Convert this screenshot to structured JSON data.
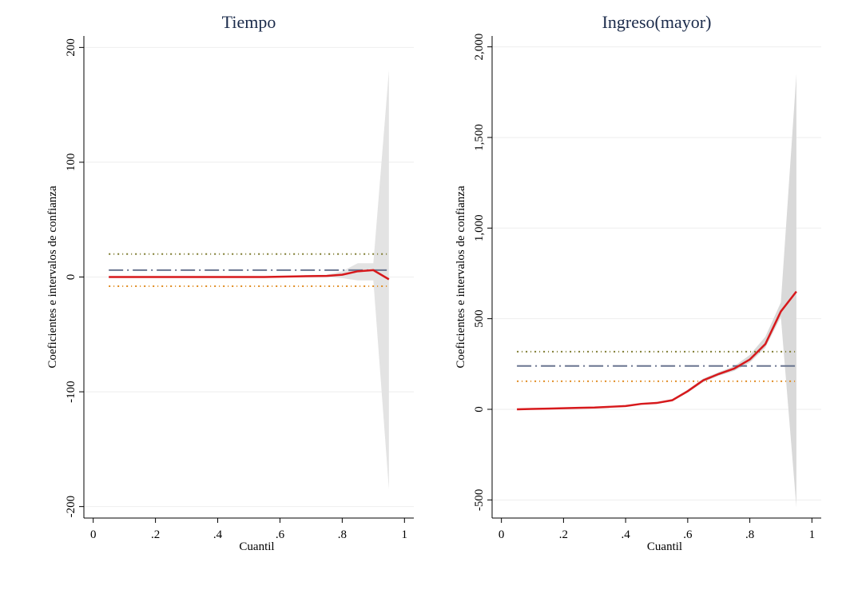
{
  "chart_data": [
    {
      "type": "line",
      "title": "Tiempo",
      "xlabel": "Cuantil",
      "ylabel": "Coeficientes e intervalos de confianza",
      "x": [
        0.05,
        0.1,
        0.15,
        0.2,
        0.25,
        0.3,
        0.35,
        0.4,
        0.45,
        0.5,
        0.55,
        0.6,
        0.65,
        0.7,
        0.75,
        0.8,
        0.85,
        0.9,
        0.95
      ],
      "series": [
        {
          "color": "#d7191c",
          "values": [
            0,
            0,
            0,
            0,
            0,
            0,
            0,
            0,
            0,
            0,
            0,
            0.3,
            0.5,
            0.8,
            1,
            2,
            5,
            6,
            -2
          ]
        }
      ],
      "band": {
        "color": "#e3e3e3",
        "lower": [
          -0.5,
          -0.5,
          -0.5,
          -0.5,
          -0.5,
          -0.5,
          -0.5,
          -0.5,
          -0.5,
          -0.5,
          -0.5,
          -0.3,
          -0.3,
          -0.2,
          0,
          -1,
          -3,
          -3,
          -185
        ],
        "upper": [
          0.5,
          0.5,
          0.5,
          0.5,
          0.5,
          0.5,
          0.5,
          0.5,
          0.5,
          0.5,
          0.5,
          0.9,
          1.3,
          1.8,
          2,
          5,
          12,
          12,
          180
        ]
      },
      "ols": {
        "value": 6,
        "lower": -8,
        "upper": 20,
        "color": "#6a7590",
        "lower_color": "#e08a1e",
        "upper_color": "#7d7a2e"
      },
      "xlim": [
        -0.03,
        1.03
      ],
      "ylim": [
        -210,
        210
      ],
      "xticks": [
        0,
        {
          "value": 0.2,
          "label": ".2"
        },
        {
          "value": 0.4,
          "label": ".4"
        },
        {
          "value": 0.6,
          "label": ".6"
        },
        {
          "value": 0.8,
          "label": ".8"
        },
        1
      ],
      "yticks": [
        -200,
        -100,
        0,
        100,
        200
      ],
      "grid": true
    },
    {
      "type": "line",
      "title": "Ingreso(mayor)",
      "xlabel": "Cuantil",
      "ylabel": "Coeficientes e intervalos de confianza",
      "x": [
        0.05,
        0.1,
        0.15,
        0.2,
        0.25,
        0.3,
        0.35,
        0.4,
        0.45,
        0.5,
        0.55,
        0.6,
        0.65,
        0.7,
        0.75,
        0.8,
        0.85,
        0.9,
        0.95
      ],
      "series": [
        {
          "color": "#d7191c",
          "values": [
            0,
            2,
            4,
            6,
            8,
            10,
            14,
            18,
            30,
            35,
            50,
            100,
            160,
            195,
            225,
            275,
            360,
            540,
            650
          ]
        }
      ],
      "band": {
        "color": "#d9d9d9",
        "lower": [
          -2,
          0,
          2,
          4,
          6,
          8,
          11,
          15,
          26,
          30,
          44,
          92,
          150,
          185,
          212,
          258,
          340,
          510,
          -540
        ],
        "upper": [
          2,
          4,
          6,
          8,
          10,
          12,
          17,
          21,
          34,
          40,
          56,
          108,
          170,
          205,
          238,
          300,
          400,
          590,
          1850
        ]
      },
      "ols": {
        "value": 239,
        "lower": 155,
        "upper": 318,
        "color": "#6a7590",
        "lower_color": "#e08a1e",
        "upper_color": "#7d7a2e"
      },
      "xlim": [
        -0.03,
        1.03
      ],
      "ylim": [
        -600,
        2060
      ],
      "xticks": [
        0,
        {
          "value": 0.2,
          "label": ".2"
        },
        {
          "value": 0.4,
          "label": ".4"
        },
        {
          "value": 0.6,
          "label": ".6"
        },
        {
          "value": 0.8,
          "label": ".8"
        },
        1
      ],
      "yticks": [
        {
          "value": -500,
          "label": "-500"
        },
        0,
        500,
        {
          "value": 1000,
          "label": "1,000"
        },
        {
          "value": 1500,
          "label": "1,500"
        },
        {
          "value": 2000,
          "label": "2,000"
        }
      ],
      "grid": true
    }
  ]
}
